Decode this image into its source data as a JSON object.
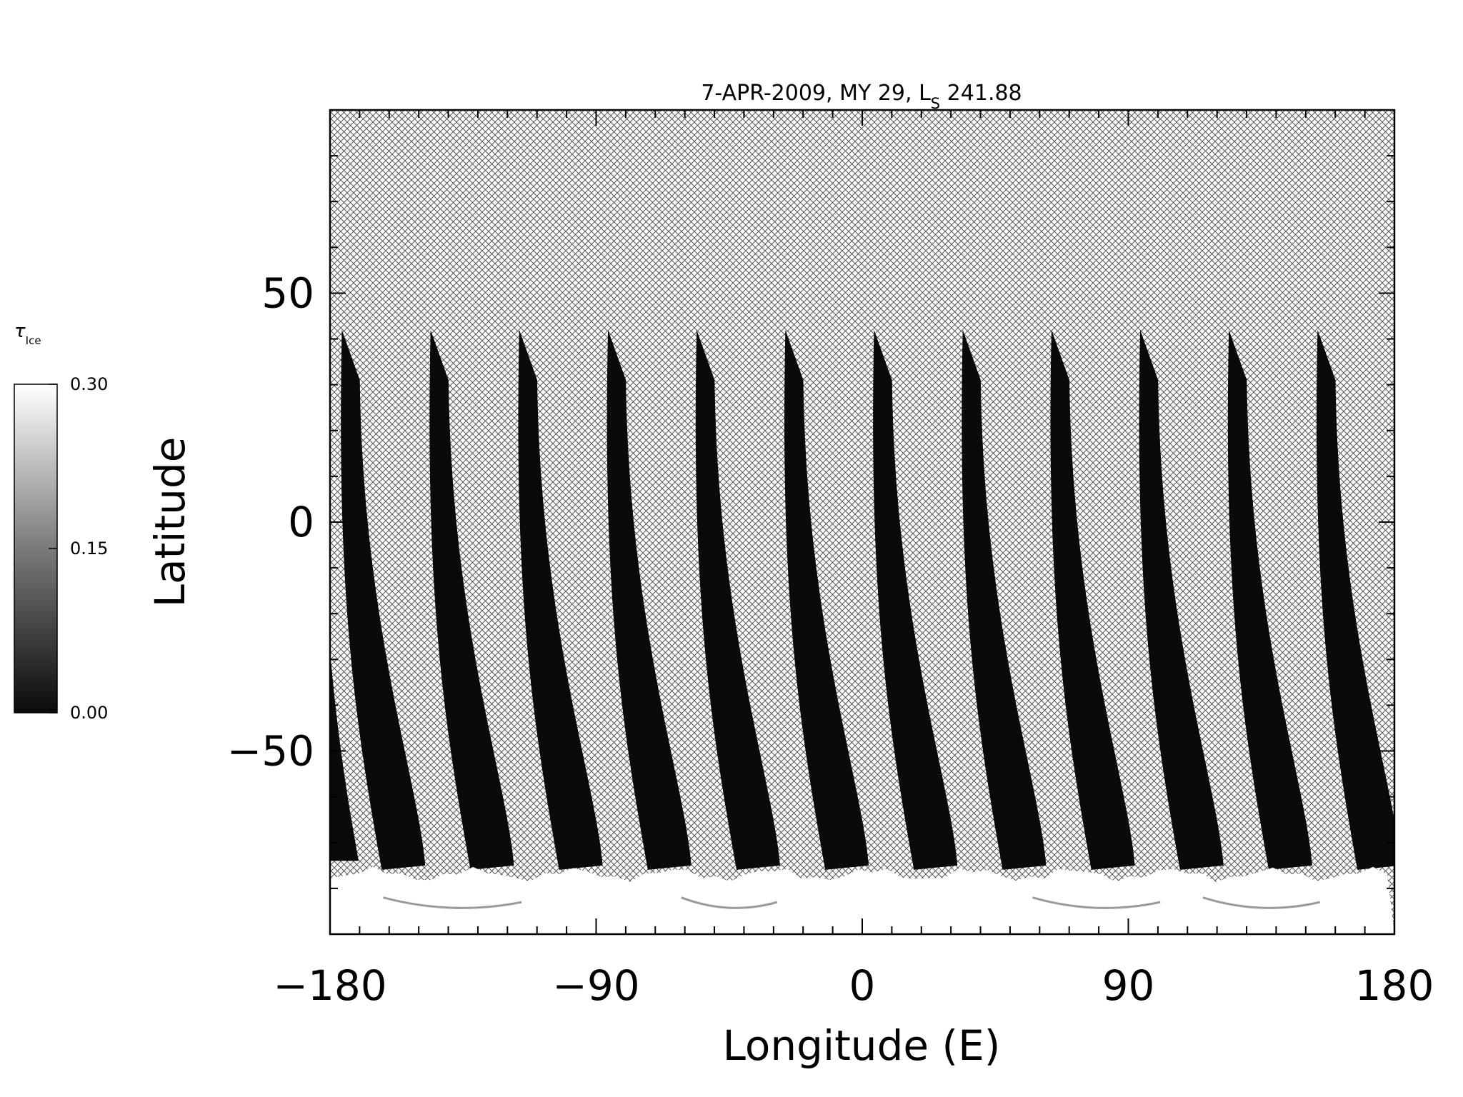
{
  "chart_data": {
    "type": "heatmap",
    "title": {
      "main": "7-APR-2009, MY 29,  L",
      "subscript": "S",
      "suffix": " 241.88"
    },
    "xlabel": "Longitude (E)",
    "ylabel": "Latitude",
    "xlim": [
      -180,
      180
    ],
    "ylim": [
      -90,
      90
    ],
    "x_ticks": [
      -180,
      -90,
      0,
      90,
      180
    ],
    "x_tick_labels": [
      "−180",
      "−90",
      "0",
      "90",
      "180"
    ],
    "y_ticks": [
      50,
      0,
      -50
    ],
    "y_tick_labels": [
      "50",
      "0",
      "−50"
    ],
    "x_minor_step": 10,
    "y_minor_step": 10,
    "colorbar": {
      "label_symbol": "τ",
      "label_subscript": "Ice",
      "range": [
        0.0,
        0.3
      ],
      "ticks": [
        0.3,
        0.15,
        0.0
      ],
      "tick_labels": [
        "0.30",
        "0.15",
        "0.00"
      ]
    },
    "no_data_hatched": true,
    "swaths": [
      {
        "lon_top": -176,
        "lon_bottom": -163,
        "lat_top": 42
      },
      {
        "lon_top": -146,
        "lon_bottom": -133,
        "lat_top": 42
      },
      {
        "lon_top": -116,
        "lon_bottom": -103,
        "lat_top": 42
      },
      {
        "lon_top": -86,
        "lon_bottom": -73,
        "lat_top": 42
      },
      {
        "lon_top": -56,
        "lon_bottom": -43,
        "lat_top": 42
      },
      {
        "lon_top": -26,
        "lon_bottom": -13,
        "lat_top": 42
      },
      {
        "lon_top": 4,
        "lon_bottom": 17,
        "lat_top": 42
      },
      {
        "lon_top": 34,
        "lon_bottom": 47,
        "lat_top": 42
      },
      {
        "lon_top": 64,
        "lon_bottom": 77,
        "lat_top": 42
      },
      {
        "lon_top": 94,
        "lon_bottom": 107,
        "lat_top": 42
      },
      {
        "lon_top": 124,
        "lon_bottom": 137,
        "lat_top": 42
      },
      {
        "lon_top": 154,
        "lon_bottom": 167,
        "lat_top": 42
      }
    ],
    "swath_lat_bottom": -75,
    "polar_cap_lat": -77,
    "polar_cap_tau": 0.3,
    "swath_tau": 0.0
  }
}
